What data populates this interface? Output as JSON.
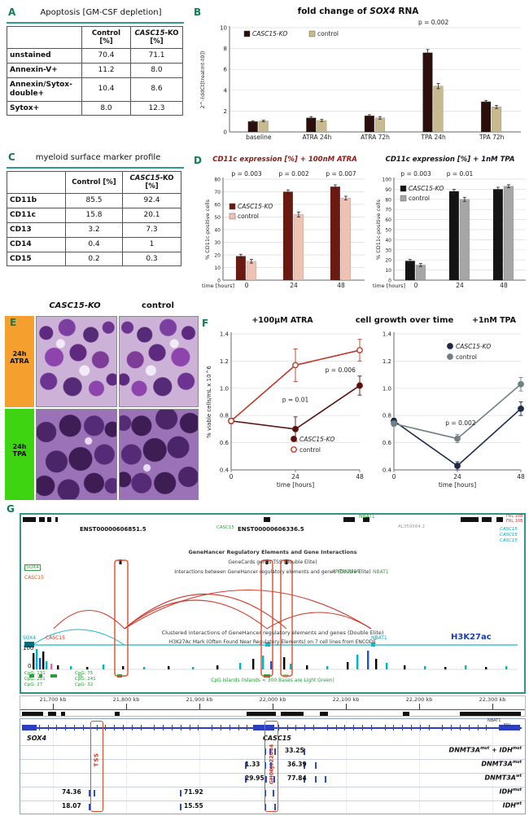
{
  "panels": {
    "a": {
      "letter": "A",
      "title": "Apoptosis [GM-CSF depletion]",
      "table": {
        "headers": [
          "",
          "Control [%]",
          "CASC15-KO [%]"
        ],
        "rows": [
          [
            "unstained",
            "70.4",
            "71.1"
          ],
          [
            "Annexin-V+",
            "11.2",
            "8.0"
          ],
          [
            "Annexin/Sytox-double+",
            "10.4",
            "8.6"
          ],
          [
            "Sytox+",
            "8.0",
            "12.3"
          ]
        ]
      }
    },
    "b": {
      "letter": "B"
    },
    "c": {
      "letter": "C",
      "title": "myeloid surface marker profile",
      "table": {
        "headers": [
          "",
          "Control [%]",
          "CASC15-KO [%]"
        ],
        "rows": [
          [
            "CD11b",
            "85.5",
            "92.4"
          ],
          [
            "CD11c",
            "15.8",
            "20.1"
          ],
          [
            "CD13",
            "3.2",
            "7.3"
          ],
          [
            "CD14",
            "0.4",
            "1"
          ],
          [
            "CD15",
            "0.2",
            "0.3"
          ]
        ]
      }
    },
    "d": {
      "letter": "D"
    },
    "e": {
      "letter": "E",
      "col_left": "CASC15-KO",
      "col_right": "control",
      "row_top": "24h ATRA",
      "row_bottom": "24h TPA"
    },
    "f": {
      "letter": "F",
      "title": "cell growth over time"
    },
    "g": {
      "letter": "G",
      "upper": {
        "transcript1": "ENST00000606851.5",
        "transcript2": "ENST00000606336.5",
        "casc15_green": "CASC15",
        "nbat1_top": "NBAT1",
        "al_label": "AL359564.2",
        "frl_labels": [
          "FRL 10B",
          "FRL 10B"
        ],
        "casc15_stack": [
          "CASC15",
          "CASC15",
          "CASC15"
        ],
        "track_lines": [
          "GeneHancer Regulatory Elements and Gene Interactions",
          "GeneCards genes TSS (Double Elite)",
          "Interactions between GeneHancer regulatory elements and genes (Double Elite)"
        ],
        "sox4_green": "SOX4",
        "casc15_orange": "CASC15",
        "rn7_label": "RN7SKP216",
        "nbat1_mid": "NBAT1",
        "clustered_line": "Clustered interactions of GeneHancer regulatory elements and genes (Double Elite)",
        "h3k27_desc": "H3K27Ac Mark (Often Found Near Regulatory Elements) on 7 cell lines from ENCODE",
        "h3k27_label": "H3K27ac",
        "signal_max": "100",
        "signal_min": "0",
        "sox4_cyan": "SOX4",
        "casc15_red": "CASC15",
        "nbat1_cyan": "NBAT1",
        "cpg_left": [
          "CpG: 131",
          "CpG: 201",
          "CpG: 27"
        ],
        "cpg_mid": [
          "CpG: 75",
          "CpG: 241",
          "CpG: 32"
        ],
        "cpg_desc": "CpG Islands (Islands < 300 Bases are Light Green)"
      },
      "ruler_ticks": [
        "21,700 kb",
        "21,800 kb",
        "21,900 kb",
        "22,000 kb",
        "22,100 kb",
        "22,200 kb",
        "22,300 kb"
      ],
      "peak_colors": [
        "#000000",
        "#00b4c4",
        "#2b4bd0",
        "#d966b0"
      ],
      "h3k27_peaks": [
        [
          14,
          20,
          0
        ],
        [
          18,
          25,
          1
        ],
        [
          22,
          14,
          2
        ],
        [
          26,
          22,
          0
        ],
        [
          30,
          10,
          1
        ],
        [
          36,
          7,
          3
        ],
        [
          44,
          5,
          0
        ],
        [
          60,
          4,
          1
        ],
        [
          80,
          3,
          0
        ],
        [
          100,
          6,
          1
        ],
        [
          124,
          4,
          0
        ],
        [
          150,
          3,
          1
        ],
        [
          180,
          4,
          0
        ],
        [
          210,
          3,
          1
        ],
        [
          240,
          5,
          0
        ],
        [
          268,
          8,
          1
        ],
        [
          284,
          13,
          0
        ],
        [
          296,
          17,
          1
        ],
        [
          306,
          10,
          2
        ],
        [
          322,
          15,
          0
        ],
        [
          330,
          7,
          1
        ],
        [
          350,
          5,
          0
        ],
        [
          375,
          4,
          1
        ],
        [
          400,
          9,
          0
        ],
        [
          412,
          18,
          1
        ],
        [
          425,
          23,
          2
        ],
        [
          435,
          13,
          0
        ],
        [
          448,
          8,
          1
        ],
        [
          470,
          5,
          0
        ],
        [
          495,
          4,
          1
        ],
        [
          520,
          3,
          0
        ],
        [
          545,
          5,
          1
        ],
        [
          570,
          3,
          0
        ],
        [
          595,
          4,
          1
        ]
      ],
      "lower": {
        "sox4": "SOX4",
        "casc15": "CASC15",
        "nbat1": "NBAT1",
        "frl": "FRL",
        "tss_label": "TSS",
        "enhancer_label": "GH06J022044",
        "rows": [
          {
            "values": [
              [
                325,
                "33.25"
              ]
            ],
            "ticks": [
              300,
              306,
              312,
              348
            ],
            "label": [
              [
                "DNMT3A",
                "mut"
              ],
              [
                " + IDH",
                "mut"
              ]
            ]
          },
          {
            "values": [
              [
                276,
                "1.33"
              ],
              [
                328,
                "36.39"
              ]
            ],
            "ticks": [
              276,
              300,
              307,
              348,
              362
            ],
            "label": [
              [
                "DNMT3A",
                "mut"
              ]
            ]
          },
          {
            "values": [
              [
                276,
                "29.95"
              ],
              [
                328,
                "77.84"
              ]
            ],
            "ticks": [
              276,
              301,
              311,
              348,
              362,
              374
            ],
            "label": [
              [
                "DNMT3A",
                "wt"
              ]
            ]
          },
          {
            "values": [
              [
                51,
                "74.36"
              ],
              [
                201,
                "71.92"
              ]
            ],
            "ticks": [
              84,
              90,
              196,
              300,
              310
            ],
            "label": [
              [
                "IDH",
                "mut"
              ]
            ]
          },
          {
            "values": [
              [
                51,
                "18.07"
              ],
              [
                201,
                "15.55"
              ]
            ],
            "ticks": [
              84,
              196,
              300,
              312
            ],
            "label": [
              [
                "IDH",
                "wt"
              ]
            ]
          }
        ]
      }
    }
  },
  "chart_data": [
    {
      "id": "b",
      "type": "bar",
      "title": "fold change of SOX4 RNA",
      "ylabel": "2^-(ddCt[treatmt-t0])",
      "ylim": [
        0,
        10
      ],
      "yticks": [
        0,
        2,
        4,
        6,
        8,
        10
      ],
      "categories": [
        "baseline",
        "ATRA 24h",
        "ATRA 72h",
        "TPA 24h",
        "TPA 72h"
      ],
      "series": [
        {
          "name": "CASC15-KO",
          "italic": true,
          "color": "#2b0f0c",
          "values": [
            1.0,
            1.35,
            1.55,
            7.6,
            2.9
          ],
          "errors": [
            0.07,
            0.12,
            0.1,
            0.3,
            0.12
          ]
        },
        {
          "name": "control",
          "color": "#c7ba8e",
          "values": [
            1.05,
            1.1,
            1.35,
            4.4,
            2.4
          ],
          "errors": [
            0.07,
            0.1,
            0.12,
            0.25,
            0.15
          ]
        }
      ],
      "p_values": [
        null,
        null,
        null,
        "p = 0.002",
        null
      ],
      "legend": {
        "pos": [
          58,
          24
        ],
        "dir": "h"
      },
      "pad": [
        40,
        14,
        6,
        16
      ],
      "ytick_fs": 7
    },
    {
      "id": "d1",
      "type": "bar",
      "title": "CD11c expression [%] + 100nM ATRA",
      "ylabel": "% CD11c-positive cells",
      "xlabel": "time [hours]",
      "ylim": [
        0,
        80
      ],
      "yticks": [
        0,
        10,
        20,
        30,
        40,
        50,
        60,
        70,
        80
      ],
      "categories": [
        "0",
        "24",
        "48"
      ],
      "series": [
        {
          "name": "CASC15-KO",
          "italic": true,
          "color": "#6b1a12",
          "values": [
            19,
            70,
            74
          ],
          "errors": [
            1.5,
            1.5,
            1.5
          ]
        },
        {
          "name": "control",
          "color": "#f0c2b4",
          "values": [
            15,
            52,
            65
          ],
          "errors": [
            1.5,
            2,
            1.5
          ]
        }
      ],
      "p_values": [
        "p = 0.003",
        "p = 0.002",
        "p = 0.007"
      ],
      "legend": {
        "pos": [
          34,
          52
        ],
        "dir": "v"
      },
      "pad": [
        26,
        16,
        4,
        18
      ],
      "ytick_fs": 6
    },
    {
      "id": "d2",
      "type": "bar",
      "title": "CD11c expression [%] + 1nM TPA",
      "ylabel": "% CD11c-positive cells",
      "xlabel": "time [hours]",
      "ylim": [
        0,
        100
      ],
      "yticks": [
        0,
        10,
        20,
        30,
        40,
        50,
        60,
        70,
        80,
        90,
        100
      ],
      "categories": [
        "0",
        "24",
        "48"
      ],
      "series": [
        {
          "name": "CASC15-KO",
          "italic": true,
          "color": "#141414",
          "values": [
            19,
            88,
            90
          ],
          "errors": [
            1.5,
            2,
            2
          ]
        },
        {
          "name": "control",
          "color": "#a6a6a6",
          "values": [
            15,
            80,
            93
          ],
          "errors": [
            1.5,
            2,
            1.5
          ]
        }
      ],
      "p_values": [
        "p = 0.003",
        "p = 0.01",
        null
      ],
      "legend": {
        "pos": [
          34,
          30
        ],
        "dir": "v"
      },
      "pad": [
        26,
        16,
        4,
        18
      ],
      "ytick_fs": 6
    },
    {
      "id": "f1",
      "type": "line",
      "subtitle": "+100μM ATRA",
      "ylabel": "% viable cells/mL x 10^6",
      "xlabel": "time [hours]",
      "ylim": [
        0.4,
        1.4
      ],
      "yticks": [
        0.4,
        0.6,
        0.8,
        1.0,
        1.2,
        1.4
      ],
      "ydec": 1,
      "x": [
        0,
        24,
        48
      ],
      "series": [
        {
          "name": "CASC15-KO",
          "italic": true,
          "color": "#5a100c",
          "marker": "filled",
          "values": [
            0.76,
            0.7,
            1.02
          ],
          "errors": [
            0.02,
            0.09,
            0.07
          ]
        },
        {
          "name": "control",
          "color": "#c0392b",
          "marker": "open",
          "values": [
            0.76,
            1.17,
            1.28
          ],
          "errors": [
            0.02,
            0.12,
            0.08
          ]
        }
      ],
      "annotations": [
        {
          "xi": 1,
          "v": 0.9,
          "text": "p = 0.01"
        },
        {
          "xi": 1.7,
          "v": 1.12,
          "text": "p = 0.006"
        }
      ],
      "legend": {
        "pos": [
          108,
          140
        ],
        "dir": "v"
      },
      "pad": [
        34,
        8,
        8,
        30
      ]
    },
    {
      "id": "f2",
      "type": "line",
      "subtitle": "+1nM TPA",
      "xlabel": "time [hours]",
      "ylim": [
        0.4,
        1.4
      ],
      "yticks": [
        0.4,
        0.6,
        0.8,
        1.0,
        1.2,
        1.4
      ],
      "ydec": 1,
      "x": [
        0,
        24,
        48
      ],
      "series": [
        {
          "name": "CASC15-KO",
          "italic": true,
          "color": "#1c2b4a",
          "marker": "filled",
          "values": [
            0.76,
            0.43,
            0.85
          ],
          "errors": [
            0.02,
            0.03,
            0.05
          ]
        },
        {
          "name": "control",
          "color": "#6f8184",
          "marker": "filled",
          "values": [
            0.74,
            0.63,
            1.03
          ],
          "errors": [
            0.02,
            0.03,
            0.05
          ]
        }
      ],
      "annotations": [
        {
          "xi": 1.05,
          "v": 0.73,
          "text": "p = 0.002"
        }
      ],
      "legend": {
        "pos": [
          92,
          26
        ],
        "dir": "v"
      },
      "pad": [
        26,
        8,
        8,
        30
      ]
    }
  ]
}
